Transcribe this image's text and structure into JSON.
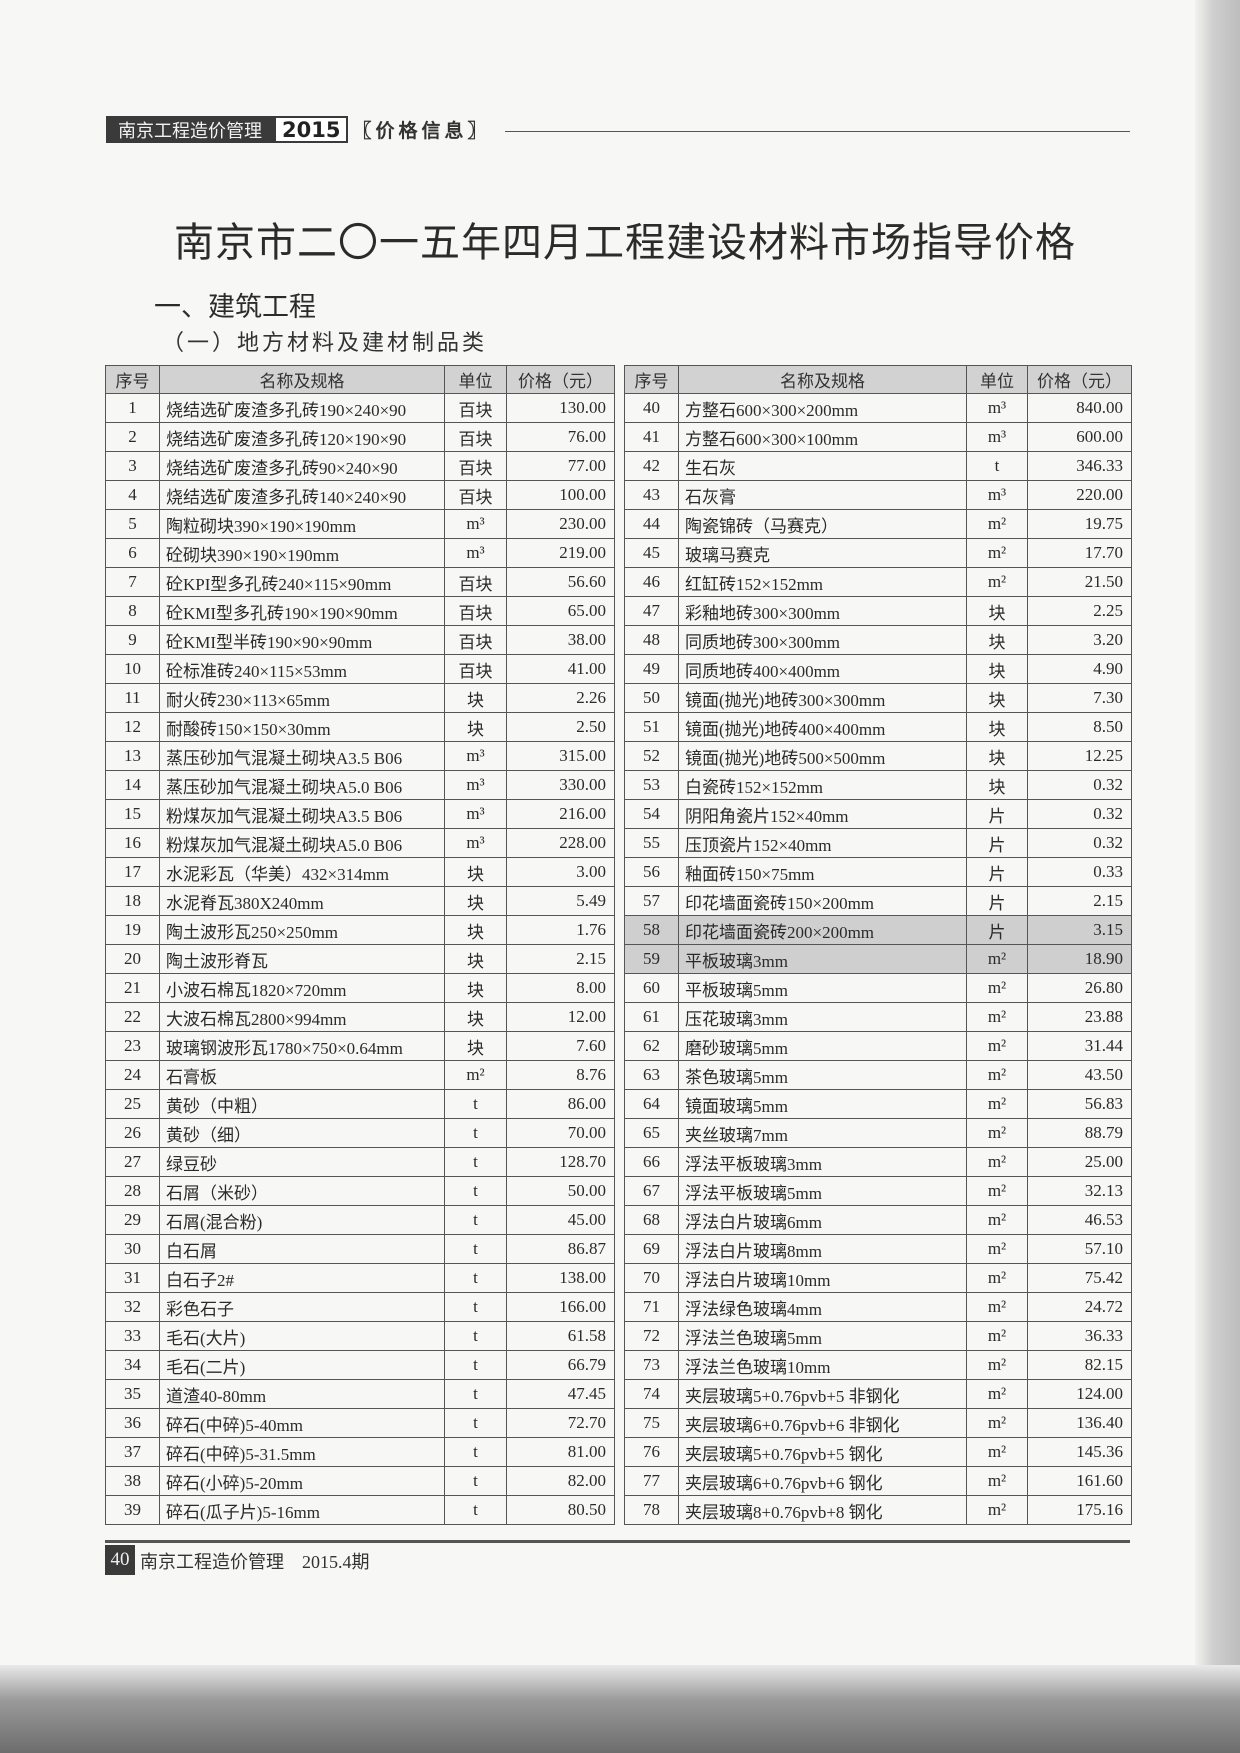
{
  "header": {
    "publication": "南京工程造价管理",
    "year": "2015",
    "section": "〖价格信息〗"
  },
  "title": "南京市二〇一五年四月工程建设材料市场指导价格",
  "heading1": "一、建筑工程",
  "heading2": "（一）地方材料及建材制品类",
  "columns": [
    "序号",
    "名称及规格",
    "单位",
    "价格（元）"
  ],
  "left_rows": [
    [
      "1",
      "烧结选矿废渣多孔砖190×240×90",
      "百块",
      "130.00"
    ],
    [
      "2",
      "烧结选矿废渣多孔砖120×190×90",
      "百块",
      "76.00"
    ],
    [
      "3",
      "烧结选矿废渣多孔砖90×240×90",
      "百块",
      "77.00"
    ],
    [
      "4",
      "烧结选矿废渣多孔砖140×240×90",
      "百块",
      "100.00"
    ],
    [
      "5",
      "陶粒砌块390×190×190mm",
      "m³",
      "230.00"
    ],
    [
      "6",
      "砼砌块390×190×190mm",
      "m³",
      "219.00"
    ],
    [
      "7",
      "砼KPI型多孔砖240×115×90mm",
      "百块",
      "56.60"
    ],
    [
      "8",
      "砼KMI型多孔砖190×190×90mm",
      "百块",
      "65.00"
    ],
    [
      "9",
      "砼KMI型半砖190×90×90mm",
      "百块",
      "38.00"
    ],
    [
      "10",
      "砼标准砖240×115×53mm",
      "百块",
      "41.00"
    ],
    [
      "11",
      "耐火砖230×113×65mm",
      "块",
      "2.26"
    ],
    [
      "12",
      "耐酸砖150×150×30mm",
      "块",
      "2.50"
    ],
    [
      "13",
      "蒸压砂加气混凝土砌块A3.5 B06",
      "m³",
      "315.00"
    ],
    [
      "14",
      "蒸压砂加气混凝土砌块A5.0 B06",
      "m³",
      "330.00"
    ],
    [
      "15",
      "粉煤灰加气混凝土砌块A3.5 B06",
      "m³",
      "216.00"
    ],
    [
      "16",
      "粉煤灰加气混凝土砌块A5.0 B06",
      "m³",
      "228.00"
    ],
    [
      "17",
      "水泥彩瓦（华美）432×314mm",
      "块",
      "3.00"
    ],
    [
      "18",
      "水泥脊瓦380X240mm",
      "块",
      "5.49"
    ],
    [
      "19",
      "陶土波形瓦250×250mm",
      "块",
      "1.76"
    ],
    [
      "20",
      "陶土波形脊瓦",
      "块",
      "2.15"
    ],
    [
      "21",
      "小波石棉瓦1820×720mm",
      "块",
      "8.00"
    ],
    [
      "22",
      "大波石棉瓦2800×994mm",
      "块",
      "12.00"
    ],
    [
      "23",
      "玻璃钢波形瓦1780×750×0.64mm",
      "块",
      "7.60"
    ],
    [
      "24",
      "石膏板",
      "m²",
      "8.76"
    ],
    [
      "25",
      "黄砂（中粗）",
      "t",
      "86.00"
    ],
    [
      "26",
      "黄砂（细）",
      "t",
      "70.00"
    ],
    [
      "27",
      "绿豆砂",
      "t",
      "128.70"
    ],
    [
      "28",
      "石屑（米砂）",
      "t",
      "50.00"
    ],
    [
      "29",
      "石屑(混合粉)",
      "t",
      "45.00"
    ],
    [
      "30",
      "白石屑",
      "t",
      "86.87"
    ],
    [
      "31",
      "白石子2#",
      "t",
      "138.00"
    ],
    [
      "32",
      "彩色石子",
      "t",
      "166.00"
    ],
    [
      "33",
      "毛石(大片)",
      "t",
      "61.58"
    ],
    [
      "34",
      "毛石(二片)",
      "t",
      "66.79"
    ],
    [
      "35",
      "道渣40-80mm",
      "t",
      "47.45"
    ],
    [
      "36",
      "碎石(中碎)5-40mm",
      "t",
      "72.70"
    ],
    [
      "37",
      "碎石(中碎)5-31.5mm",
      "t",
      "81.00"
    ],
    [
      "38",
      "碎石(小碎)5-20mm",
      "t",
      "82.00"
    ],
    [
      "39",
      "碎石(瓜子片)5-16mm",
      "t",
      "80.50"
    ]
  ],
  "right_rows": [
    [
      "40",
      "方整石600×300×200mm",
      "m³",
      "840.00"
    ],
    [
      "41",
      "方整石600×300×100mm",
      "m³",
      "600.00"
    ],
    [
      "42",
      "生石灰",
      "t",
      "346.33"
    ],
    [
      "43",
      "石灰膏",
      "m³",
      "220.00"
    ],
    [
      "44",
      "陶瓷锦砖（马赛克）",
      "m²",
      "19.75"
    ],
    [
      "45",
      "玻璃马赛克",
      "m²",
      "17.70"
    ],
    [
      "46",
      "红缸砖152×152mm",
      "m²",
      "21.50"
    ],
    [
      "47",
      "彩釉地砖300×300mm",
      "块",
      "2.25"
    ],
    [
      "48",
      "同质地砖300×300mm",
      "块",
      "3.20"
    ],
    [
      "49",
      "同质地砖400×400mm",
      "块",
      "4.90"
    ],
    [
      "50",
      "镜面(抛光)地砖300×300mm",
      "块",
      "7.30"
    ],
    [
      "51",
      "镜面(抛光)地砖400×400mm",
      "块",
      "8.50"
    ],
    [
      "52",
      "镜面(抛光)地砖500×500mm",
      "块",
      "12.25"
    ],
    [
      "53",
      "白瓷砖152×152mm",
      "块",
      "0.32"
    ],
    [
      "54",
      "阴阳角瓷片152×40mm",
      "片",
      "0.32"
    ],
    [
      "55",
      "压顶瓷片152×40mm",
      "片",
      "0.32"
    ],
    [
      "56",
      "釉面砖150×75mm",
      "片",
      "0.33"
    ],
    [
      "57",
      "印花墙面瓷砖150×200mm",
      "片",
      "2.15"
    ],
    [
      "58",
      "印花墙面瓷砖200×200mm",
      "片",
      "3.15"
    ],
    [
      "59",
      "平板玻璃3mm",
      "m²",
      "18.90"
    ],
    [
      "60",
      "平板玻璃5mm",
      "m²",
      "26.80"
    ],
    [
      "61",
      "压花玻璃3mm",
      "m²",
      "23.88"
    ],
    [
      "62",
      "磨砂玻璃5mm",
      "m²",
      "31.44"
    ],
    [
      "63",
      "茶色玻璃5mm",
      "m²",
      "43.50"
    ],
    [
      "64",
      "镜面玻璃5mm",
      "m²",
      "56.83"
    ],
    [
      "65",
      "夹丝玻璃7mm",
      "m²",
      "88.79"
    ],
    [
      "66",
      "浮法平板玻璃3mm",
      "m²",
      "25.00"
    ],
    [
      "67",
      "浮法平板玻璃5mm",
      "m²",
      "32.13"
    ],
    [
      "68",
      "浮法白片玻璃6mm",
      "m²",
      "46.53"
    ],
    [
      "69",
      "浮法白片玻璃8mm",
      "m²",
      "57.10"
    ],
    [
      "70",
      "浮法白片玻璃10mm",
      "m²",
      "75.42"
    ],
    [
      "71",
      "浮法绿色玻璃4mm",
      "m²",
      "24.72"
    ],
    [
      "72",
      "浮法兰色玻璃5mm",
      "m²",
      "36.33"
    ],
    [
      "73",
      "浮法兰色玻璃10mm",
      "m²",
      "82.15"
    ],
    [
      "74",
      "夹层玻璃5+0.76pvb+5 非钢化",
      "m²",
      "124.00"
    ],
    [
      "75",
      "夹层玻璃6+0.76pvb+6 非钢化",
      "m²",
      "136.40"
    ],
    [
      "76",
      "夹层玻璃5+0.76pvb+5 钢化",
      "m²",
      "145.36"
    ],
    [
      "77",
      "夹层玻璃6+0.76pvb+6 钢化",
      "m²",
      "161.60"
    ],
    [
      "78",
      "夹层玻璃8+0.76pvb+8 钢化",
      "m²",
      "175.16"
    ]
  ],
  "highlighted_rows": [
    "58",
    "59"
  ],
  "footer": {
    "page": "40",
    "text": "南京工程造价管理　2015.4期"
  }
}
